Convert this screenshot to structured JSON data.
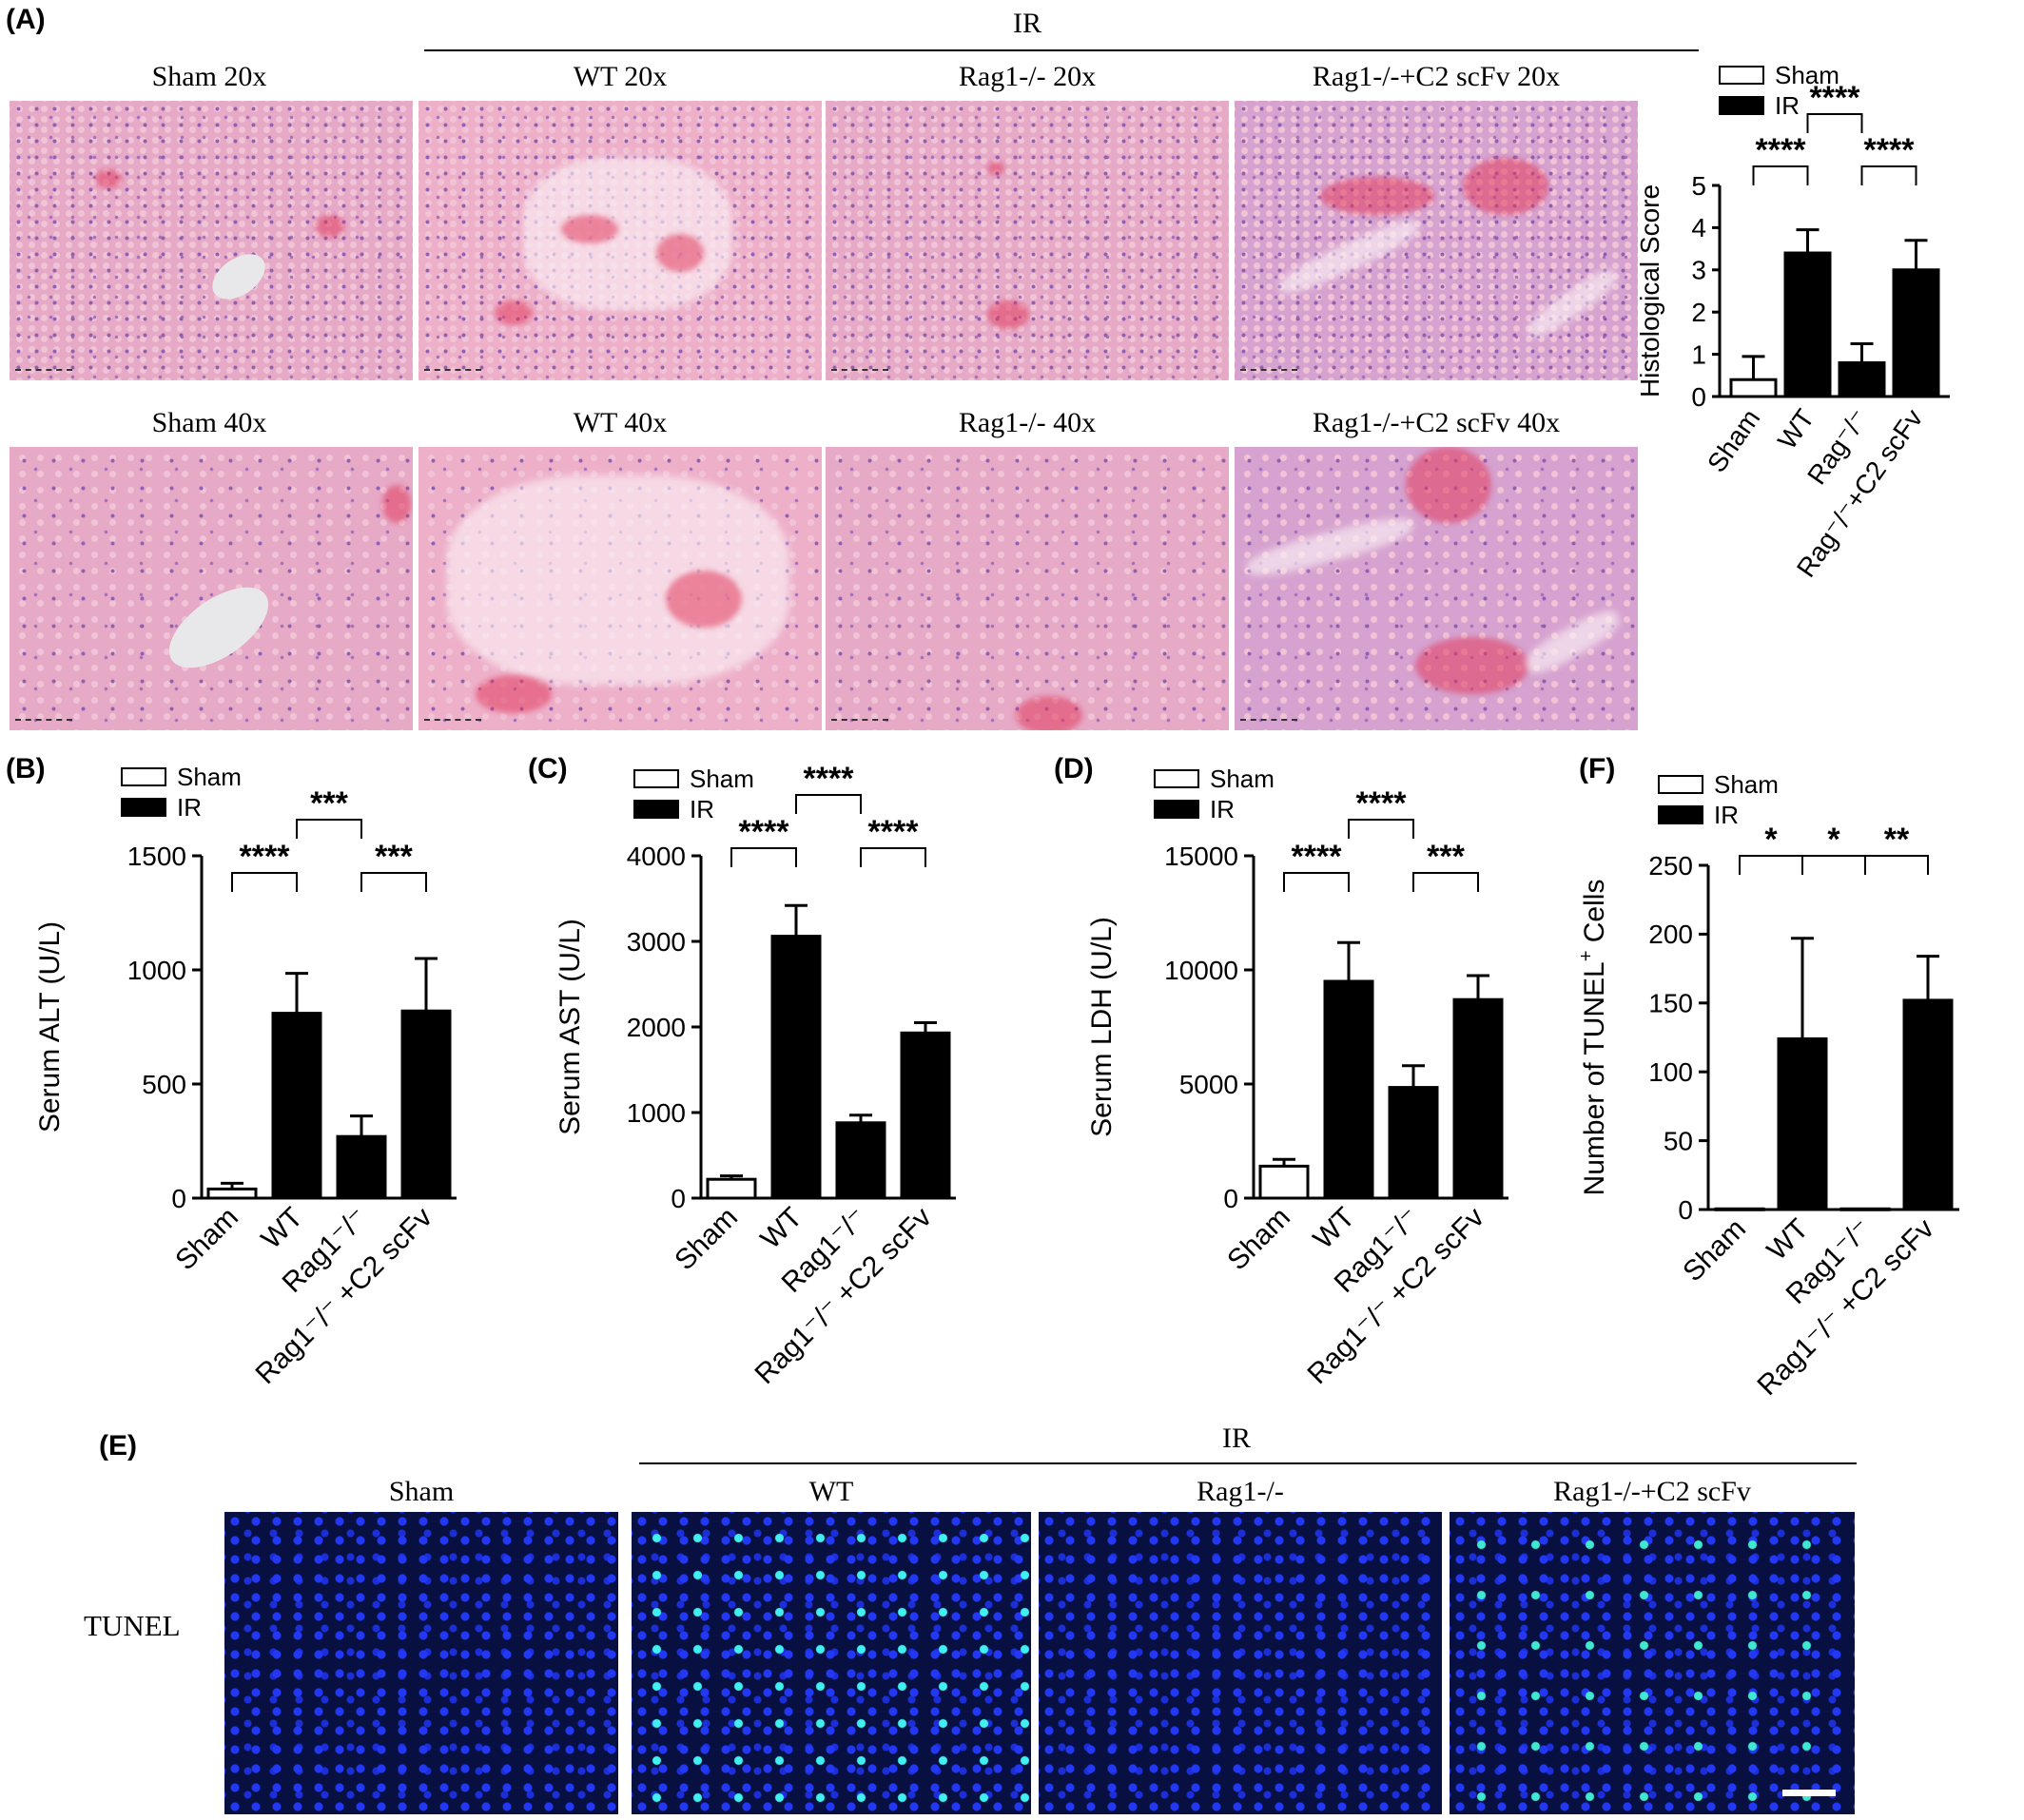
{
  "panels": {
    "A": "(A)",
    "B": "(B)",
    "C": "(C)",
    "D": "(D)",
    "E": "(E)",
    "F": "(F)"
  },
  "panelA": {
    "ir_label": "IR",
    "row1": [
      "Sham 20x",
      "WT 20x",
      "Rag1-/- 20x",
      "Rag1-/-+C2 scFv 20x"
    ],
    "row2": [
      "Sham 40x",
      "WT 40x",
      "Rag1-/- 40x",
      "Rag1-/-+C2 scFv 40x"
    ]
  },
  "panelE": {
    "ir_label": "IR",
    "columns": [
      "Sham",
      "WT",
      "Rag1-/-",
      "Rag1-/-+C2 scFv"
    ],
    "row_label": "TUNEL"
  },
  "colors": {
    "ir_bar": "#000000",
    "sham_bar": "#ffffff"
  },
  "chart_data": [
    {
      "id": "histo",
      "type": "bar",
      "categories": [
        "Sham",
        "WT",
        "Rag-/-",
        "Rag-/-+C2 scFv"
      ],
      "values": [
        0.4,
        3.4,
        0.8,
        3.0
      ],
      "errors": [
        0.55,
        0.55,
        0.45,
        0.7
      ],
      "groups": [
        "Sham",
        "IR",
        "IR",
        "IR"
      ],
      "ylabel": "Histological Score",
      "ylim": [
        0,
        5
      ],
      "yticks": [
        0,
        1,
        2,
        3,
        4,
        5
      ],
      "legend": [
        "Sham",
        "IR"
      ],
      "significance": [
        {
          "from": 0,
          "to": 1,
          "label": "****"
        },
        {
          "from": 2,
          "to": 3,
          "label": "****"
        },
        {
          "from": 1,
          "to": 2,
          "label": "****"
        }
      ]
    },
    {
      "id": "alt",
      "type": "bar",
      "categories": [
        "Sham",
        "WT",
        "Rag1-/-",
        "Rag1-/- +C2 scFv"
      ],
      "values": [
        40,
        810,
        270,
        820
      ],
      "errors": [
        25,
        175,
        90,
        230
      ],
      "groups": [
        "Sham",
        "IR",
        "IR",
        "IR"
      ],
      "ylabel": "Serum ALT (U/L)",
      "ylim": [
        0,
        1500
      ],
      "yticks": [
        0,
        500,
        1000,
        1500
      ],
      "legend": [
        "Sham",
        "IR"
      ],
      "significance": [
        {
          "from": 0,
          "to": 1,
          "label": "****"
        },
        {
          "from": 2,
          "to": 3,
          "label": "***"
        },
        {
          "from": 1,
          "to": 2,
          "label": "***"
        }
      ]
    },
    {
      "id": "ast",
      "type": "bar",
      "categories": [
        "Sham",
        "WT",
        "Rag1-/-",
        "Rag1-/- +C2 scFv"
      ],
      "values": [
        220,
        3060,
        880,
        1930
      ],
      "errors": [
        40,
        360,
        90,
        120
      ],
      "groups": [
        "Sham",
        "IR",
        "IR",
        "IR"
      ],
      "ylabel": "Serum AST (U/L)",
      "ylim": [
        0,
        4000
      ],
      "yticks": [
        0,
        1000,
        2000,
        3000,
        4000
      ],
      "legend": [
        "Sham",
        "IR"
      ],
      "significance": [
        {
          "from": 0,
          "to": 1,
          "label": "****"
        },
        {
          "from": 2,
          "to": 3,
          "label": "****"
        },
        {
          "from": 1,
          "to": 2,
          "label": "****"
        }
      ]
    },
    {
      "id": "ldh",
      "type": "bar",
      "categories": [
        "Sham",
        "WT",
        "Rag1-/-",
        "Rag1-/- +C2 scFv"
      ],
      "values": [
        1400,
        9500,
        4850,
        8700
      ],
      "errors": [
        300,
        1700,
        950,
        1050
      ],
      "groups": [
        "Sham",
        "IR",
        "IR",
        "IR"
      ],
      "ylabel": "Serum LDH (U/L)",
      "ylim": [
        0,
        15000
      ],
      "yticks": [
        0,
        5000,
        10000,
        15000
      ],
      "legend": [
        "Sham",
        "IR"
      ],
      "significance": [
        {
          "from": 0,
          "to": 1,
          "label": "****"
        },
        {
          "from": 2,
          "to": 3,
          "label": "***"
        },
        {
          "from": 1,
          "to": 2,
          "label": "****"
        }
      ]
    },
    {
      "id": "tunel",
      "type": "bar",
      "categories": [
        "Sham",
        "WT",
        "Rag1-/-",
        "Rag1-/- +C2 scFv"
      ],
      "values": [
        0.5,
        124,
        0.5,
        152
      ],
      "errors": [
        0,
        73,
        0,
        32
      ],
      "groups": [
        "Sham",
        "IR",
        "IR",
        "IR"
      ],
      "ylabel": "Number of TUNEL+ Cells",
      "ylim": [
        0,
        250
      ],
      "yticks": [
        0,
        50,
        100,
        150,
        200,
        250
      ],
      "legend": [
        "Sham",
        "IR"
      ],
      "significance": [
        {
          "from": 0,
          "to": 1,
          "label": "*"
        },
        {
          "from": 1,
          "to": 2,
          "label": "*"
        },
        {
          "from": 2,
          "to": 3,
          "label": "**"
        }
      ]
    }
  ]
}
